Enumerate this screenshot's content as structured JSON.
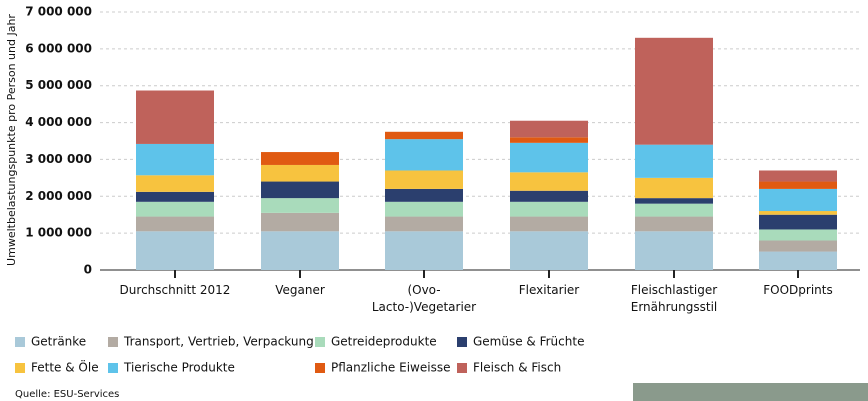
{
  "chart_data": {
    "type": "stacked-bar",
    "y_label": "Umweltbelastungspunkte pro Person und Jahr",
    "source": "Quelle: ESU-Services",
    "categories": [
      "Durchschnitt 2012",
      "Veganer",
      "(Ovo-Lacto-)Vegetarier",
      "Flexitarier",
      "Fleischlastiger Ernährungsstil",
      "FOODprints"
    ],
    "series": [
      {
        "name": "Getränke",
        "color": "#a9c9d9",
        "values": [
          1050000,
          1050000,
          1050000,
          1050000,
          1050000,
          500000
        ]
      },
      {
        "name": "Transport, Vertrieb, Verpackung",
        "color": "#b3aba3",
        "values": [
          400000,
          500000,
          400000,
          400000,
          400000,
          300000
        ]
      },
      {
        "name": "Getreideprodukte",
        "color": "#a9dbbb",
        "values": [
          400000,
          400000,
          400000,
          400000,
          350000,
          300000
        ]
      },
      {
        "name": "Gemüse & Früchte",
        "color": "#2b3f6e",
        "values": [
          270000,
          450000,
          350000,
          300000,
          150000,
          400000
        ]
      },
      {
        "name": "Fette & Öle",
        "color": "#f7c33f",
        "values": [
          450000,
          450000,
          500000,
          500000,
          550000,
          100000
        ]
      },
      {
        "name": "Tierische Produkte",
        "color": "#5ec3ea",
        "values": [
          850000,
          0,
          850000,
          800000,
          900000,
          600000
        ]
      },
      {
        "name": "Pflanzliche Eiweisse",
        "color": "#e05a12",
        "values": [
          0,
          350000,
          200000,
          150000,
          0,
          200000
        ]
      },
      {
        "name": "Fleisch & Fisch",
        "color": "#bf625b",
        "values": [
          1450000,
          0,
          0,
          450000,
          2900000,
          300000
        ]
      }
    ],
    "ylim": [
      0,
      7000000
    ],
    "yticks": [
      0,
      {
        "value": 1000000,
        "label": "1 000 000"
      },
      {
        "value": 2000000,
        "label": "2 000 000"
      },
      {
        "value": 3000000,
        "label": "3 000 000"
      },
      {
        "value": 4000000,
        "label": "4 000 000"
      },
      {
        "value": 5000000,
        "label": "5 000 000"
      },
      {
        "value": 6000000,
        "label": "6 000 000"
      },
      {
        "value": 7000000,
        "label": "7 000 000"
      }
    ],
    "grid": true
  }
}
